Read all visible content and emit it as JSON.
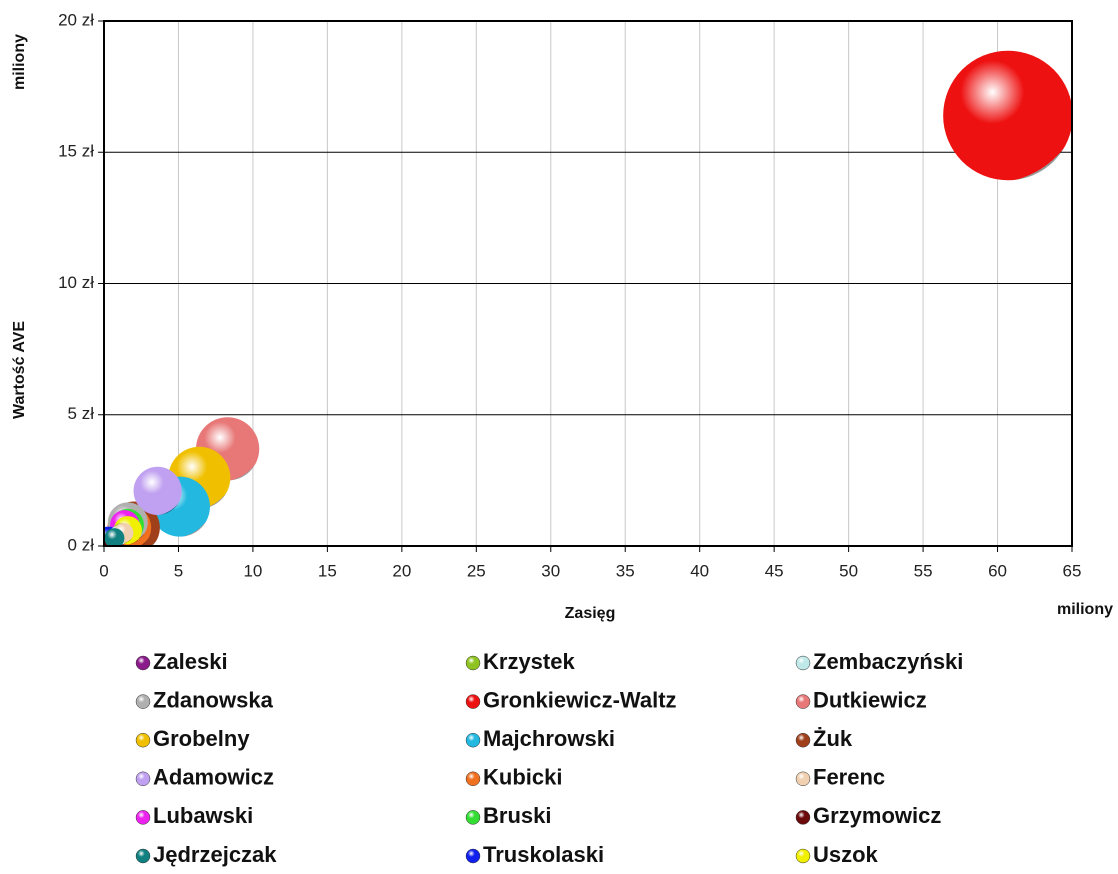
{
  "chart_data": {
    "type": "bubble",
    "x_label": "Zasięg",
    "x_unit": "miliony",
    "y_label": "Wartość AVE",
    "y_unit": "miliony",
    "xlim": [
      0,
      65
    ],
    "xticks": [
      0,
      5,
      10,
      15,
      20,
      25,
      30,
      35,
      40,
      45,
      50,
      55,
      60,
      65
    ],
    "ylim": [
      0,
      20
    ],
    "yticks": [
      {
        "value": 0,
        "label": "0 zł"
      },
      {
        "value": 5,
        "label": "5 zł"
      },
      {
        "value": 10,
        "label": "10 zł"
      },
      {
        "value": 15,
        "label": "15 zł"
      },
      {
        "value": 20,
        "label": "20 zł"
      }
    ],
    "grid": true,
    "series": [
      {
        "name": "Zaleski",
        "color": "#8b1a8b",
        "x": [
          0.8
        ],
        "values": [
          0.3
        ],
        "sizes": [
          1
        ]
      },
      {
        "name": "Krzystek",
        "color": "#8fc31f",
        "x": [
          1.2
        ],
        "values": [
          0.5
        ],
        "sizes": [
          1
        ]
      },
      {
        "name": "Zembaczyński",
        "color": "#bfe8e8",
        "x": [
          1.0
        ],
        "values": [
          0.4
        ],
        "sizes": [
          1
        ]
      },
      {
        "name": "Zdanowska",
        "color": "#b0b0b0",
        "x": [
          1.6
        ],
        "values": [
          0.9
        ],
        "sizes": [
          4
        ]
      },
      {
        "name": "Gronkiewicz-Waltz",
        "color": "#ee1111",
        "x": [
          60.7
        ],
        "values": [
          16.4
        ],
        "sizes": [
          42
        ]
      },
      {
        "name": "Dutkiewicz",
        "color": "#e87878",
        "x": [
          8.3
        ],
        "values": [
          3.7
        ],
        "sizes": [
          10
        ]
      },
      {
        "name": "Grobelny",
        "color": "#f0c000",
        "x": [
          6.4
        ],
        "values": [
          2.6
        ],
        "sizes": [
          9.6
        ]
      },
      {
        "name": "Majchrowski",
        "color": "#22b8e0",
        "x": [
          5.1
        ],
        "values": [
          1.5
        ],
        "sizes": [
          9
        ]
      },
      {
        "name": "Żuk",
        "color": "#a0401a",
        "x": [
          2.0
        ],
        "values": [
          0.7
        ],
        "sizes": [
          6.8
        ]
      },
      {
        "name": "Adamowicz",
        "color": "#c0a0f0",
        "x": [
          3.6
        ],
        "values": [
          2.1
        ],
        "sizes": [
          5.8
        ]
      },
      {
        "name": "Kubicki",
        "color": "#f07020",
        "x": [
          1.7
        ],
        "values": [
          0.7
        ],
        "sizes": [
          4.8
        ]
      },
      {
        "name": "Ferenc",
        "color": "#f0d0b0",
        "x": [
          1.3
        ],
        "values": [
          0.5
        ],
        "sizes": [
          1
        ]
      },
      {
        "name": "Lubawski",
        "color": "#ee22ee",
        "x": [
          1.4
        ],
        "values": [
          0.8
        ],
        "sizes": [
          2.2
        ]
      },
      {
        "name": "Bruski",
        "color": "#33dd33",
        "x": [
          1.6
        ],
        "values": [
          0.8
        ],
        "sizes": [
          2.6
        ]
      },
      {
        "name": "Grzymowicz",
        "color": "#6a0a0a",
        "x": [
          0.6
        ],
        "values": [
          0.2
        ],
        "sizes": [
          1
        ]
      },
      {
        "name": "Jędrzejczak",
        "color": "#108080",
        "x": [
          0.7
        ],
        "values": [
          0.3
        ],
        "sizes": [
          1
        ]
      },
      {
        "name": "Truskolaski",
        "color": "#1020ee",
        "x": [
          0.3
        ],
        "values": [
          0.2
        ],
        "sizes": [
          2
        ]
      },
      {
        "name": "Uszok",
        "color": "#f0f000",
        "x": [
          1.6
        ],
        "values": [
          0.6
        ],
        "sizes": [
          2
        ]
      }
    ]
  }
}
